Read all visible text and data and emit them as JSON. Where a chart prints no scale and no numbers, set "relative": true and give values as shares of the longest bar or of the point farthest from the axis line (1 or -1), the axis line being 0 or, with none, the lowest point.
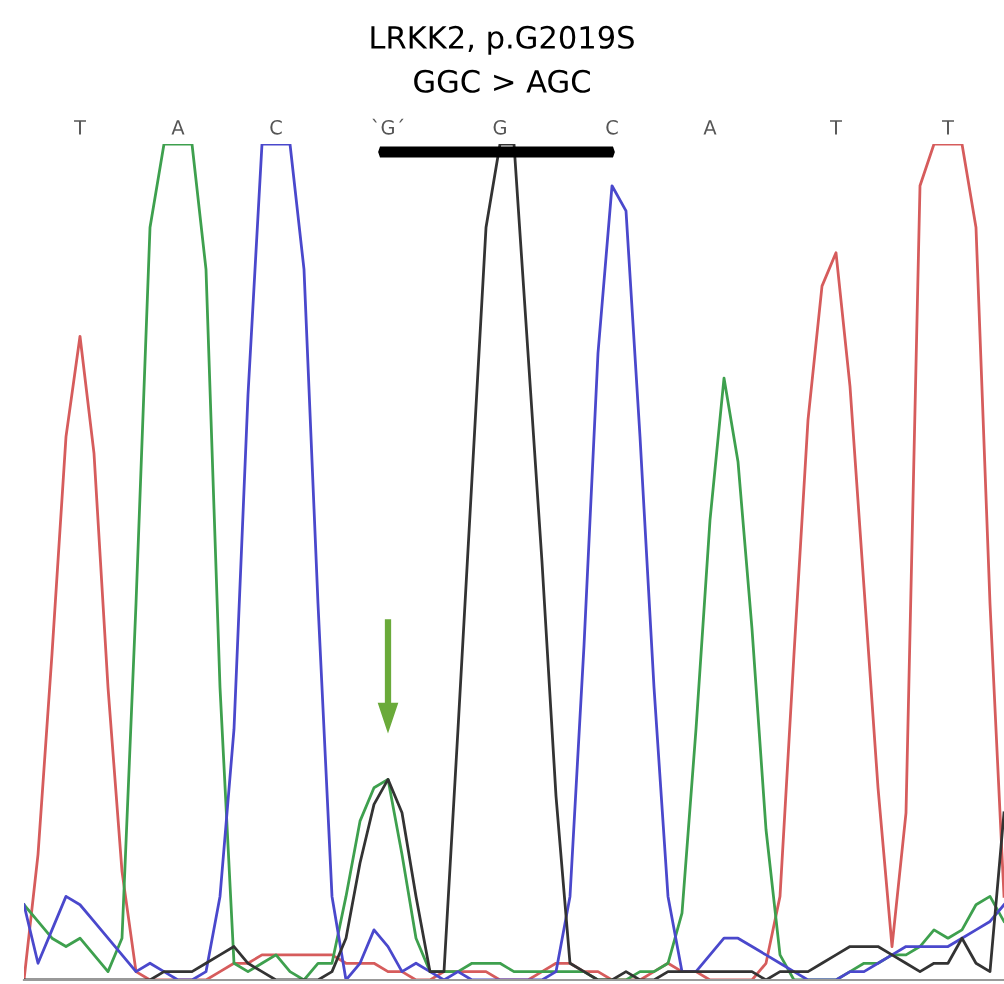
{
  "chart_data": {
    "type": "line",
    "relative": true,
    "title": "LRKK2, p.G2019S",
    "subtitle": "GGC > AGC",
    "categories": [
      null,
      null,
      null,
      null,
      "T",
      null,
      null,
      null,
      null,
      null,
      null,
      "A",
      null,
      null,
      null,
      null,
      null,
      null,
      "C",
      null,
      null,
      null,
      null,
      null,
      null,
      null,
      "`G´",
      null,
      null,
      null,
      null,
      null,
      null,
      null,
      "G",
      null,
      null,
      null,
      null,
      null,
      null,
      null,
      "C",
      null,
      null,
      null,
      null,
      null,
      null,
      "A",
      null,
      null,
      null,
      null,
      null,
      null,
      null,
      null,
      "T",
      null,
      null,
      null,
      null,
      null,
      null,
      null,
      "T",
      null,
      null,
      null,
      null
    ],
    "series": [
      {
        "color": "#d65c5c",
        "values": [
          0,
          0.15,
          0.39,
          0.65,
          0.77,
          0.63,
          0.35,
          0.13,
          0.01,
          0,
          0,
          0,
          0,
          0,
          0.01,
          0.02,
          0.02,
          0.03,
          0.03,
          0.03,
          0.03,
          0.03,
          0.03,
          0.02,
          0.02,
          0.02,
          0.01,
          0.01,
          0,
          0,
          0.01,
          0.01,
          0.01,
          0.01,
          0,
          0,
          0,
          0.01,
          0.02,
          0.02,
          0.01,
          0.01,
          0,
          0,
          0,
          0.01,
          0.02,
          0.01,
          0.01,
          0,
          0,
          0,
          0,
          0.02,
          0.1,
          0.39,
          0.67,
          0.83,
          0.87,
          0.71,
          0.47,
          0.23,
          0.04,
          0.2,
          0.95,
          1,
          1,
          1,
          0.9,
          0.45,
          0.1
        ]
      },
      {
        "color": "#3ea04e",
        "values": [
          0.09,
          0.07,
          0.05,
          0.04,
          0.05,
          0.03,
          0.01,
          0.05,
          0.45,
          0.9,
          1,
          1,
          1,
          0.85,
          0.35,
          0.02,
          0.01,
          0.02,
          0.03,
          0.01,
          0,
          0.02,
          0.02,
          0.1,
          0.19,
          0.23,
          0.24,
          0.15,
          0.05,
          0.01,
          0.01,
          0.01,
          0.02,
          0.02,
          0.02,
          0.01,
          0.01,
          0.01,
          0.01,
          0.01,
          0.01,
          0,
          0,
          0,
          0.01,
          0.01,
          0.02,
          0.08,
          0.3,
          0.55,
          0.72,
          0.62,
          0.42,
          0.18,
          0.03,
          0,
          0,
          0,
          0,
          0.01,
          0.02,
          0.02,
          0.03,
          0.03,
          0.04,
          0.06,
          0.05,
          0.06,
          0.09,
          0.1,
          0.07
        ]
      },
      {
        "color": "#4a48cc",
        "values": [
          0.09,
          0.02,
          0.06,
          0.1,
          0.09,
          0.07,
          0.05,
          0.03,
          0.01,
          0.02,
          0.01,
          0,
          0,
          0.01,
          0.1,
          0.3,
          0.7,
          1,
          1,
          1,
          0.85,
          0.45,
          0.1,
          0,
          0.02,
          0.06,
          0.04,
          0.01,
          0.02,
          0.01,
          0,
          0.01,
          0,
          0,
          0,
          0,
          0,
          0,
          0.01,
          0.1,
          0.4,
          0.75,
          0.95,
          0.92,
          0.65,
          0.35,
          0.1,
          0.01,
          0.01,
          0.03,
          0.05,
          0.05,
          0.04,
          0.03,
          0.02,
          0.01,
          0,
          0,
          0,
          0.01,
          0.01,
          0.02,
          0.03,
          0.04,
          0.04,
          0.04,
          0.04,
          0.05,
          0.06,
          0.07,
          0.09
        ]
      },
      {
        "color": "#333333",
        "values": [
          0,
          0,
          0,
          0,
          0,
          0,
          0,
          0,
          0,
          0,
          0.01,
          0.01,
          0.01,
          0.02,
          0.03,
          0.04,
          0.02,
          0.01,
          0,
          0,
          0,
          0,
          0.01,
          0.05,
          0.14,
          0.21,
          0.24,
          0.2,
          0.1,
          0.01,
          0.01,
          0.3,
          0.6,
          0.9,
          1,
          1,
          0.75,
          0.5,
          0.22,
          0.02,
          0.01,
          0,
          0,
          0.01,
          0,
          0,
          0.01,
          0.01,
          0.01,
          0.01,
          0.01,
          0.01,
          0.01,
          0,
          0.01,
          0.01,
          0.01,
          0.02,
          0.03,
          0.04,
          0.04,
          0.04,
          0.03,
          0.02,
          0.01,
          0.02,
          0.02,
          0.05,
          0.02,
          0.01,
          0.2
        ]
      }
    ],
    "grid": false,
    "marker": "none",
    "line_style": "solid"
  }
}
